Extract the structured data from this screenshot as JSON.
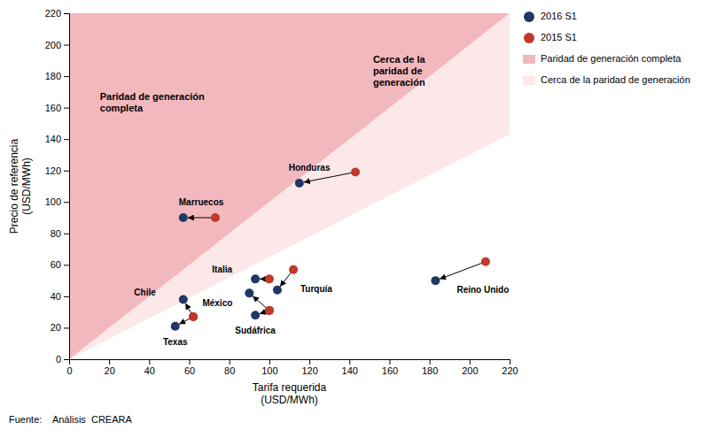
{
  "chart_data": {
    "type": "scatter",
    "xlabel": "Tarifa requerida\n(USD/MWh)",
    "ylabel": "Precio de referencia\n(USD/MWh)",
    "xlim": [
      0,
      220
    ],
    "ylim": [
      0,
      220
    ],
    "xticks": [
      0,
      20,
      40,
      60,
      80,
      100,
      120,
      140,
      160,
      180,
      200,
      220
    ],
    "yticks": [
      0,
      20,
      40,
      60,
      80,
      100,
      120,
      140,
      160,
      180,
      200,
      220
    ],
    "grid": false,
    "legend": "right",
    "point_labels": [
      "Marruecos",
      "Honduras",
      "Chile",
      "Italia",
      "Turquía",
      "México",
      "Sudáfrica",
      "Texas",
      "Reino Unido"
    ],
    "series": [
      {
        "name": "2016 S1",
        "color": "#1f3864",
        "marker": "circle",
        "x": [
          57,
          115,
          57,
          93,
          104,
          90,
          93,
          53,
          183
        ],
        "values": [
          90,
          112,
          38,
          51,
          44,
          42,
          28,
          21,
          50
        ]
      },
      {
        "name": "2015 S1",
        "color": "#c0392b",
        "marker": "circle",
        "x": [
          73,
          143,
          62,
          100,
          112,
          100,
          100,
          62,
          208
        ],
        "values": [
          90,
          119,
          27,
          51,
          57,
          31,
          31,
          27,
          62
        ]
      }
    ],
    "zones": [
      {
        "name": "Paridad de generación completa",
        "color": "#f2b8be",
        "slope_low": 1.0
      },
      {
        "name": "Cerca de la paridad de generación",
        "color": "#fce8e8",
        "slope_low": 0.65,
        "slope_high": 1.0
      }
    ],
    "annotations": [
      "Paridad de generación\ncompleta",
      "Cerca de la\nparidad de\ngeneración"
    ],
    "source": "Fuente:    Análisis  CREARA"
  }
}
